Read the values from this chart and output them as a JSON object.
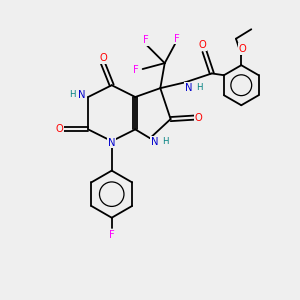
{
  "background_color": "#efefef",
  "atom_colors": {
    "C": "#000000",
    "N": "#0000cd",
    "O": "#ff0000",
    "F": "#ff00ff",
    "H": "#008080"
  }
}
